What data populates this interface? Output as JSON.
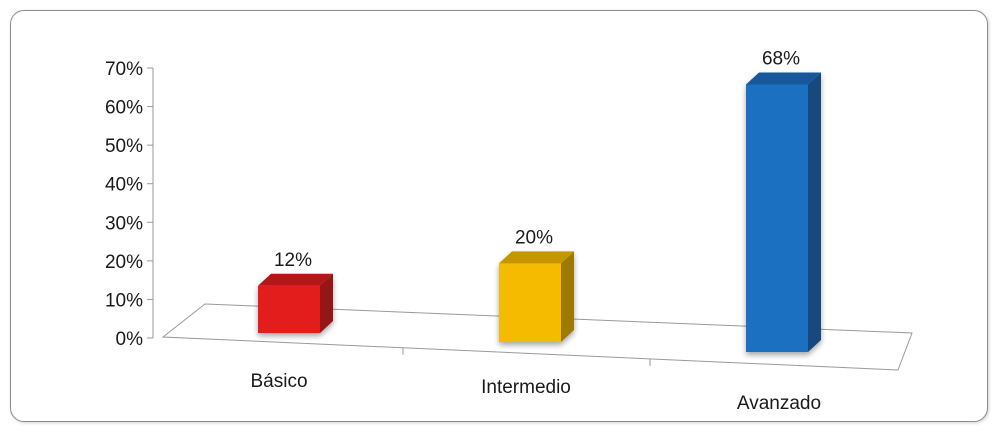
{
  "chart_data": {
    "type": "bar",
    "style": "3d-column",
    "categories": [
      "Básico",
      "Intermedio",
      "Avanzado"
    ],
    "values": [
      12,
      20,
      68
    ],
    "data_labels": [
      "12%",
      "20%",
      "68%"
    ],
    "colors": [
      "#e31b1b",
      "#f5bb00",
      "#1f6fc1"
    ],
    "yticks": [
      "0%",
      "10%",
      "20%",
      "30%",
      "40%",
      "50%",
      "60%",
      "70%"
    ],
    "ylim": [
      0,
      70
    ],
    "grid": false,
    "legend": "none",
    "title": "",
    "xlabel": "",
    "ylabel": ""
  }
}
